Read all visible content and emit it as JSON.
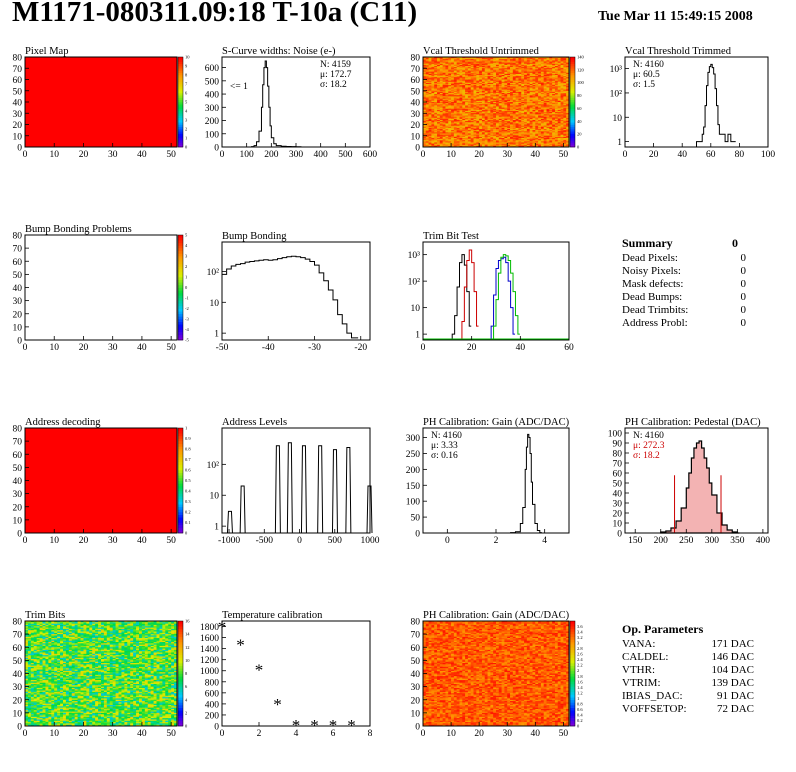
{
  "header": {
    "title": "M1171-080311.09:18 T-10a (C11)",
    "date": "Tue Mar 11 15:49:15 2008"
  },
  "chart_data": [
    {
      "id": "pixel-map",
      "type": "heatmap",
      "title": "Pixel Map",
      "xlim": [
        0,
        52
      ],
      "ylim": [
        0,
        80
      ],
      "xticks": [
        0,
        10,
        20,
        30,
        40,
        50
      ],
      "yticks": [
        0,
        10,
        20,
        30,
        40,
        50,
        60,
        70,
        80
      ],
      "zlim": [
        0,
        10
      ],
      "zticks": [
        0,
        1,
        2,
        3,
        4,
        5,
        6,
        7,
        8,
        9,
        10
      ],
      "fill": "uniform",
      "fill_value": 10
    },
    {
      "id": "scurve-widths",
      "type": "line",
      "title": "S-Curve widths: Noise (e-)",
      "xlim": [
        0,
        600
      ],
      "ylim": [
        0,
        680
      ],
      "xticks": [
        0,
        100,
        200,
        300,
        400,
        500,
        600
      ],
      "yticks": [
        0,
        100,
        200,
        300,
        400,
        500,
        600
      ],
      "stats": [
        "N: 4159",
        "μ: 172.7",
        "σ: 18.2"
      ],
      "annotation": "<= 1",
      "series": [
        {
          "x": [
            100,
            120,
            130,
            140,
            150,
            160,
            165,
            170,
            175,
            180,
            185,
            190,
            195,
            200,
            210,
            220,
            240,
            260,
            280,
            300,
            320
          ],
          "y": [
            0,
            3,
            10,
            40,
            120,
            300,
            470,
            600,
            650,
            600,
            460,
            300,
            160,
            70,
            25,
            10,
            6,
            4,
            3,
            2,
            0
          ]
        }
      ]
    },
    {
      "id": "vcal-untrimmed",
      "type": "heatmap",
      "title": "Vcal Threshold Untrimmed",
      "xlim": [
        0,
        52
      ],
      "ylim": [
        0,
        80
      ],
      "xticks": [
        0,
        10,
        20,
        30,
        40,
        50
      ],
      "yticks": [
        0,
        10,
        20,
        30,
        40,
        50,
        60,
        70,
        80
      ],
      "zlim": [
        0,
        140
      ],
      "zticks": [
        0,
        20,
        40,
        60,
        80,
        100,
        120,
        140
      ],
      "fill": "random",
      "fill_range": [
        100,
        135
      ]
    },
    {
      "id": "vcal-trimmed",
      "type": "line",
      "title": "Vcal Threshold Trimmed",
      "ylog": true,
      "xlim": [
        0,
        100
      ],
      "ylim": [
        0.6,
        3000
      ],
      "xticks": [
        0,
        20,
        40,
        60,
        80,
        100
      ],
      "yticks": [
        1,
        10,
        100,
        1000
      ],
      "stats": [
        "N: 4160",
        "μ: 60.5",
        "σ: 1.5"
      ],
      "series": [
        {
          "x": [
            50,
            52,
            54,
            55,
            56,
            57,
            58,
            59,
            60,
            61,
            62,
            63,
            64,
            65,
            66,
            70,
            72,
            74,
            76
          ],
          "y": [
            1,
            1,
            2,
            4,
            30,
            200,
            700,
            1200,
            1500,
            1100,
            600,
            150,
            30,
            5,
            2,
            1,
            2,
            1,
            1
          ]
        }
      ]
    },
    {
      "id": "bump-bonding-problems",
      "type": "heatmap",
      "title": "Bump Bonding Problems",
      "xlim": [
        0,
        52
      ],
      "ylim": [
        0,
        80
      ],
      "xticks": [
        0,
        10,
        20,
        30,
        40,
        50
      ],
      "yticks": [
        0,
        10,
        20,
        30,
        40,
        50,
        60,
        70,
        80
      ],
      "zlim": [
        -5,
        5
      ],
      "zticks": [
        -5,
        -4,
        -3,
        -2,
        -1,
        0,
        1,
        2,
        3,
        4,
        5
      ],
      "fill": "empty"
    },
    {
      "id": "bump-bonding",
      "type": "line",
      "title": "Bump Bonding",
      "ylog": true,
      "xlim": [
        -50,
        -18
      ],
      "ylim": [
        0.6,
        900
      ],
      "xticks": [
        -50,
        -40,
        -30,
        -20
      ],
      "yticks": [
        1,
        10,
        100
      ],
      "series": [
        {
          "x": [
            -50,
            -49,
            -48,
            -47,
            -46,
            -45,
            -44,
            -43,
            -42,
            -41,
            -40,
            -39,
            -38,
            -37,
            -36,
            -35,
            -34,
            -33,
            -32,
            -31,
            -30,
            -29,
            -28,
            -27,
            -26,
            -25,
            -24,
            -23,
            -22,
            -21
          ],
          "y": [
            80,
            120,
            150,
            170,
            180,
            200,
            210,
            220,
            230,
            240,
            230,
            240,
            260,
            280,
            300,
            310,
            300,
            280,
            250,
            210,
            160,
            90,
            50,
            25,
            12,
            4,
            2,
            1,
            0.7,
            0.7
          ]
        }
      ]
    },
    {
      "id": "trim-bit-test",
      "type": "line",
      "title": "Trim Bit Test",
      "ylog": true,
      "xlim": [
        0,
        60
      ],
      "ylim": [
        0.6,
        3000
      ],
      "xticks": [
        0,
        20,
        40,
        60
      ],
      "yticks": [
        1,
        10,
        100,
        1000
      ],
      "series": [
        {
          "color": "#000000",
          "x": [
            12,
            13,
            14,
            15,
            16,
            17,
            18,
            19
          ],
          "y": [
            1,
            5,
            60,
            500,
            1000,
            400,
            40,
            2
          ]
        },
        {
          "color": "#cc0000",
          "x": [
            16,
            17,
            18,
            19,
            20,
            21,
            22
          ],
          "y": [
            3,
            60,
            600,
            1500,
            500,
            40,
            2
          ]
        },
        {
          "color": "#0000cc",
          "x": [
            28,
            29,
            30,
            31,
            32,
            33,
            34,
            35,
            36,
            37
          ],
          "y": [
            2,
            30,
            300,
            600,
            700,
            800,
            500,
            100,
            10,
            1
          ]
        },
        {
          "color": "#00bb00",
          "x": [
            29,
            30,
            31,
            32,
            33,
            34,
            35,
            36,
            37,
            38,
            39
          ],
          "y": [
            2,
            20,
            200,
            800,
            1000,
            900,
            600,
            200,
            40,
            5,
            1
          ]
        }
      ]
    },
    {
      "id": "address-decoding",
      "type": "heatmap",
      "title": "Address decoding",
      "xlim": [
        0,
        52
      ],
      "ylim": [
        0,
        80
      ],
      "xticks": [
        0,
        10,
        20,
        30,
        40,
        50
      ],
      "yticks": [
        0,
        10,
        20,
        30,
        40,
        50,
        60,
        70,
        80
      ],
      "zlim": [
        0,
        1
      ],
      "zticks": [
        0,
        0.1,
        0.2,
        0.3,
        0.4,
        0.5,
        0.6,
        0.7,
        0.8,
        0.9,
        1
      ],
      "fill": "uniform",
      "fill_value": 1
    },
    {
      "id": "address-levels",
      "type": "line",
      "title": "Address Levels",
      "ylog": true,
      "xlim": [
        -1100,
        1000
      ],
      "ylim": [
        0.6,
        1500
      ],
      "xticks": [
        -1000,
        -500,
        0,
        500,
        1000
      ],
      "yticks": [
        1,
        10,
        100
      ],
      "peaks": [
        [
          -980,
          3
        ],
        [
          -800,
          20
        ],
        [
          -300,
          400
        ],
        [
          -130,
          500
        ],
        [
          70,
          400
        ],
        [
          300,
          400
        ],
        [
          510,
          300
        ],
        [
          700,
          350
        ],
        [
          1000,
          20
        ]
      ]
    },
    {
      "id": "ph-gain",
      "type": "line",
      "title": "PH Calibration: Gain (ADC/DAC)",
      "xlim": [
        -1,
        5
      ],
      "ylim": [
        0,
        330
      ],
      "xticks": [
        0,
        2,
        4
      ],
      "yticks": [
        0,
        50,
        100,
        150,
        200,
        250,
        300
      ],
      "stats": [
        "N: 4160",
        "μ: 3.33",
        "σ: 0.16"
      ],
      "series": [
        {
          "x": [
            2.6,
            2.8,
            3.0,
            3.1,
            3.2,
            3.25,
            3.3,
            3.35,
            3.4,
            3.45,
            3.5,
            3.6,
            3.7,
            3.8
          ],
          "y": [
            1,
            4,
            30,
            80,
            200,
            270,
            310,
            300,
            250,
            160,
            90,
            30,
            8,
            1
          ]
        }
      ]
    },
    {
      "id": "ph-pedestal",
      "type": "area",
      "title": "PH Calibration: Pedestal (DAC)",
      "xlim": [
        130,
        410
      ],
      "ylim": [
        0,
        105
      ],
      "xticks": [
        150,
        200,
        250,
        300,
        350,
        400
      ],
      "yticks": [
        0,
        10,
        20,
        30,
        40,
        50,
        60,
        70,
        80,
        90,
        100
      ],
      "stats": [
        "N: 4160",
        "μ: 272.3",
        "σ: 18.2"
      ],
      "markers": [
        227,
        318
      ],
      "series": [
        {
          "x": [
            200,
            210,
            220,
            230,
            240,
            250,
            255,
            260,
            265,
            270,
            275,
            280,
            285,
            290,
            295,
            300,
            310,
            320,
            330,
            340,
            350
          ],
          "y": [
            1,
            2,
            5,
            12,
            25,
            45,
            60,
            75,
            85,
            90,
            92,
            85,
            75,
            65,
            50,
            38,
            20,
            8,
            3,
            1,
            0
          ]
        }
      ]
    },
    {
      "id": "trim-bits",
      "type": "heatmap",
      "title": "Trim Bits",
      "xlim": [
        0,
        52
      ],
      "ylim": [
        0,
        80
      ],
      "xticks": [
        0,
        10,
        20,
        30,
        40,
        50
      ],
      "yticks": [
        0,
        10,
        20,
        30,
        40,
        50,
        60,
        70,
        80
      ],
      "zlim": [
        0,
        16
      ],
      "zticks": [
        0,
        2,
        4,
        6,
        8,
        10,
        12,
        14,
        16
      ],
      "fill": "random",
      "fill_range": [
        5,
        11
      ]
    },
    {
      "id": "temperature-calibration",
      "type": "scatter",
      "title": "Temperature calibration",
      "xlim": [
        0,
        8
      ],
      "ylim": [
        0,
        1900
      ],
      "xticks": [
        0,
        2,
        4,
        6,
        8
      ],
      "yticks": [
        0,
        200,
        400,
        600,
        800,
        1000,
        1200,
        1400,
        1600,
        1800
      ],
      "series": [
        {
          "x": [
            0,
            1,
            2,
            3,
            4,
            5,
            6,
            7
          ],
          "y": [
            1780,
            1460,
            1000,
            380,
            0,
            0,
            0,
            0
          ]
        }
      ]
    },
    {
      "id": "ph-gain-map",
      "type": "heatmap",
      "title": "PH Calibration: Gain (ADC/DAC)",
      "xlim": [
        0,
        52
      ],
      "ylim": [
        0,
        80
      ],
      "xticks": [
        0,
        10,
        20,
        30,
        40,
        50
      ],
      "yticks": [
        0,
        10,
        20,
        30,
        40,
        50,
        60,
        70,
        80
      ],
      "zlim": [
        0,
        3.8
      ],
      "zticks": [
        0,
        0.2,
        0.4,
        0.6,
        0.8,
        1,
        1.2,
        1.4,
        1.6,
        1.8,
        2,
        2.2,
        2.4,
        2.6,
        2.8,
        3,
        3.2,
        3.4,
        3.6
      ],
      "fill": "random",
      "fill_range": [
        3.0,
        3.7
      ]
    }
  ],
  "summary": {
    "title": "Summary",
    "total": "0",
    "rows": [
      {
        "label": "Dead Pixels:",
        "value": "0"
      },
      {
        "label": "Noisy Pixels:",
        "value": "0"
      },
      {
        "label": "Mask defects:",
        "value": "0"
      },
      {
        "label": "Dead Bumps:",
        "value": "0"
      },
      {
        "label": "Dead Trimbits:",
        "value": "0"
      },
      {
        "label": "Address Probl:",
        "value": "0"
      }
    ]
  },
  "op_parameters": {
    "title": "Op. Parameters",
    "rows": [
      {
        "label": "VANA:",
        "value": "171 DAC"
      },
      {
        "label": "CALDEL:",
        "value": "146 DAC"
      },
      {
        "label": "VTHR:",
        "value": "104 DAC"
      },
      {
        "label": "VTRIM:",
        "value": "139 DAC"
      },
      {
        "label": "IBIAS_DAC:",
        "value": "91 DAC"
      },
      {
        "label": "VOFFSETOP:",
        "value": "72 DAC"
      }
    ]
  }
}
